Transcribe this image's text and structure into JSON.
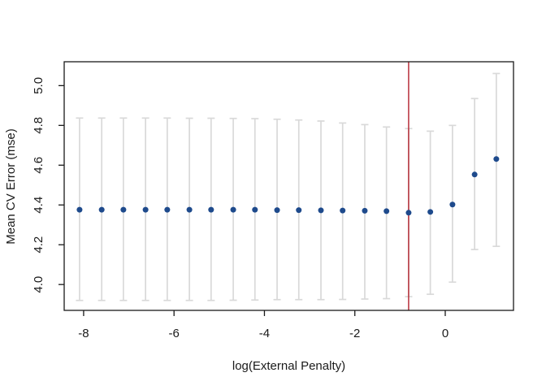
{
  "chart_data": {
    "type": "scatter",
    "title": "",
    "xlabel": "log(External Penalty)",
    "ylabel": "Mean CV Error (mse)",
    "x_ticks": [
      -8,
      -6,
      -4,
      -2,
      0
    ],
    "x_tick_labels": [
      "-8",
      "-6",
      "-4",
      "-2",
      "0"
    ],
    "y_ticks": [
      4.0,
      4.2,
      4.4,
      4.6,
      4.8,
      5.0
    ],
    "y_tick_labels": [
      "4.0",
      "4.2",
      "4.4",
      "4.6",
      "4.8",
      "5.0"
    ],
    "xlim": [
      -8.43,
      1.51
    ],
    "ylim": [
      3.87,
      5.12
    ],
    "grid": false,
    "legend": "none",
    "vline_x": -0.81,
    "series": [
      {
        "name": "Mean CV Error with ±1 SE bars",
        "marker": "filled-circle",
        "x": [
          -8.09,
          -7.6,
          -7.12,
          -6.63,
          -6.15,
          -5.66,
          -5.18,
          -4.69,
          -4.21,
          -3.72,
          -3.24,
          -2.75,
          -2.27,
          -1.78,
          -1.3,
          -0.81,
          -0.33,
          0.16,
          0.65,
          1.13
        ],
        "y": [
          4.376,
          4.376,
          4.376,
          4.376,
          4.376,
          4.376,
          4.376,
          4.376,
          4.376,
          4.374,
          4.374,
          4.373,
          4.372,
          4.371,
          4.369,
          4.361,
          4.365,
          4.402,
          4.553,
          4.631
        ],
        "upper": [
          4.837,
          4.837,
          4.837,
          4.837,
          4.837,
          4.836,
          4.836,
          4.835,
          4.834,
          4.831,
          4.827,
          4.822,
          4.812,
          4.804,
          4.792,
          4.784,
          4.771,
          4.8,
          4.935,
          5.061
        ],
        "lower": [
          3.92,
          3.92,
          3.92,
          3.92,
          3.92,
          3.92,
          3.92,
          3.921,
          3.922,
          3.924,
          3.924,
          3.924,
          3.925,
          3.927,
          3.929,
          3.939,
          3.951,
          4.012,
          4.176,
          4.192
        ]
      }
    ],
    "colors": {
      "point": "#1e4a8c",
      "errorbar": "#d9d9d9",
      "vline": "#b3202c",
      "axis": "#1a1a1a",
      "text": "#1a1a1a",
      "background": "#ffffff"
    }
  }
}
